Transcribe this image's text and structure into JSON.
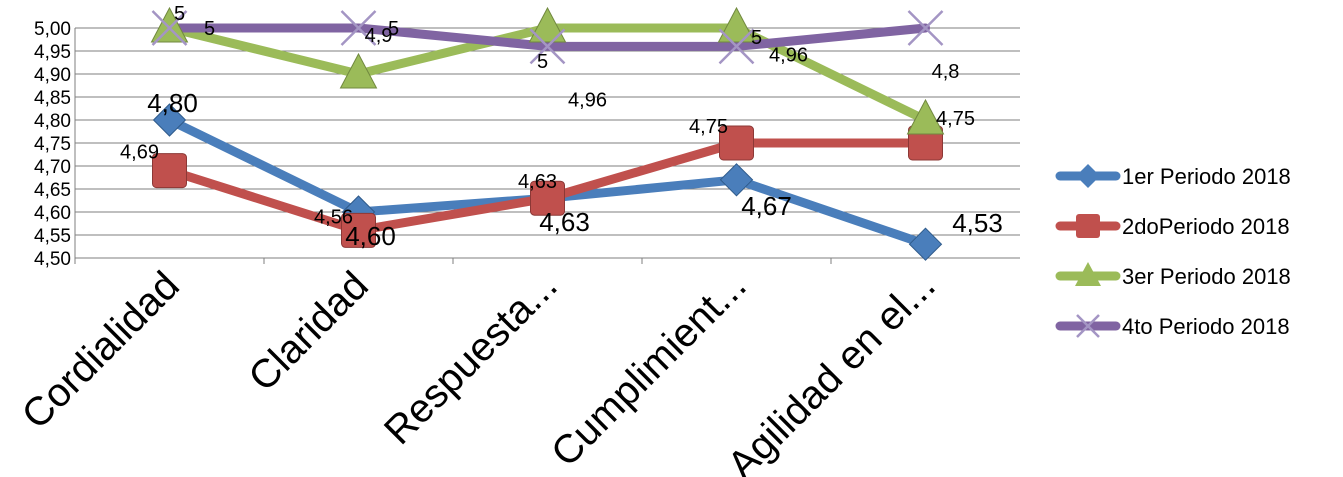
{
  "chart_data": {
    "type": "line",
    "title": "",
    "xlabel": "",
    "ylabel": "",
    "categories": [
      "Cordialidad",
      "Claridad",
      "Respuesta...",
      "Cumplimient...",
      "Agilidad en el..."
    ],
    "ylim": [
      4.5,
      5.0
    ],
    "ytick_step": 0.05,
    "yticks": [
      "4,50",
      "4,55",
      "4,60",
      "4,65",
      "4,70",
      "4,75",
      "4,80",
      "4,85",
      "4,90",
      "4,95",
      "5,00"
    ],
    "grid": true,
    "legend_position": "right",
    "series": [
      {
        "name": "1er Periodo 2018",
        "marker": "diamond",
        "color": "#4a7ebb",
        "values": [
          4.8,
          4.6,
          4.63,
          4.67,
          4.53
        ],
        "labels": [
          "4,80",
          "4,60",
          "4,63",
          "4,67",
          "4,53"
        ]
      },
      {
        "name": "2doPeriodo 2018",
        "marker": "square",
        "color": "#c0504d",
        "values": [
          4.69,
          4.56,
          4.63,
          4.75,
          4.75
        ],
        "labels": [
          "4,69",
          "4,56",
          "4,63",
          "4,75",
          "4,75"
        ]
      },
      {
        "name": "3er Periodo 2018",
        "marker": "triangle",
        "color": "#9bbb59",
        "values": [
          5.0,
          4.9,
          5.0,
          5.0,
          4.8
        ],
        "labels": [
          "5",
          "4,9",
          "5",
          "5",
          "4,8"
        ]
      },
      {
        "name": "4to Periodo 2018",
        "marker": "x",
        "color": "#8064a2",
        "values": [
          5.0,
          5.0,
          4.96,
          4.96,
          5.0
        ],
        "labels": [
          "5",
          "5",
          "4,96",
          "4,96",
          ""
        ]
      }
    ]
  }
}
